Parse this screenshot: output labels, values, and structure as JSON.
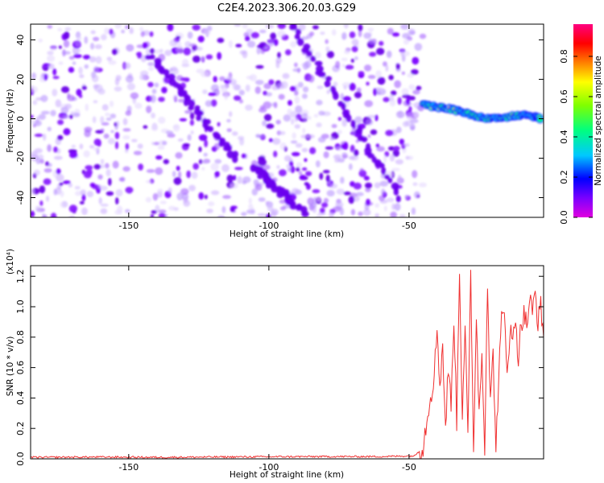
{
  "title": "C2E4.2023.306.20.03.G29",
  "chart_data": [
    {
      "type": "heatmap",
      "xlabel": "Height of straight line (km)",
      "ylabel": "Frequency (Hz)",
      "xlim": [
        -185,
        -2
      ],
      "ylim": [
        -50,
        48
      ],
      "xticks": [
        -150,
        -100,
        -50
      ],
      "yticks": [
        -40,
        -20,
        0,
        20,
        40
      ],
      "grid": false,
      "colorbar": {
        "label": "Normalized spectral amplitude",
        "range": [
          0,
          0.96
        ],
        "ticks": [
          0.0,
          0.2,
          0.4,
          0.6,
          0.8
        ],
        "colormap": [
          "#e000e0",
          "#7a00ff",
          "#0000ff",
          "#00c8ff",
          "#00ff80",
          "#80ff00",
          "#ffff00",
          "#ff8000",
          "#ff0000",
          "#ff0080"
        ]
      },
      "features": [
        {
          "kind": "noise-background",
          "x_range": [
            -185,
            -45
          ],
          "y_range": [
            -50,
            48
          ],
          "color": "#7a00ff"
        },
        {
          "kind": "diagonal-streak",
          "from": [
            -92,
            48
          ],
          "to": [
            -53,
            -40
          ]
        },
        {
          "kind": "diagonal-streak",
          "from": [
            -142,
            32
          ],
          "to": [
            -112,
            -20
          ]
        },
        {
          "kind": "diagonal-streak",
          "from": [
            -105,
            -25
          ],
          "to": [
            -90,
            -45
          ]
        },
        {
          "kind": "signal-track",
          "x": [
            -45,
            -40,
            -35,
            -30,
            -25,
            -20,
            -15,
            -10,
            -5,
            -3
          ],
          "y": [
            7,
            6,
            5,
            3,
            1,
            0,
            1,
            2,
            1,
            0
          ]
        }
      ]
    },
    {
      "type": "line",
      "xlabel": "Height of straight line (km)",
      "ylabel": "SNR (10 * v/v)",
      "scale_note": "(x10⁴)",
      "xlim": [
        -185,
        -2
      ],
      "ylim": [
        0,
        1.27
      ],
      "xticks": [
        -150,
        -100,
        -50
      ],
      "yticks": [
        0.0,
        0.2,
        0.4,
        0.6,
        0.8,
        1.0,
        1.2
      ],
      "grid": false,
      "color": "#f03030",
      "series": [
        {
          "x": [
            -185,
            -160,
            -140,
            -120,
            -100,
            -80,
            -60,
            -48,
            -45,
            -43,
            -41,
            -40,
            -39,
            -38,
            -37,
            -36,
            -35,
            -34,
            -33,
            -32,
            -31,
            -30,
            -29,
            -28,
            -27,
            -26,
            -25,
            -24,
            -23,
            -22,
            -21,
            -20,
            -19,
            -18,
            -17,
            -16,
            -15,
            -14,
            -13,
            -12,
            -11,
            -10,
            -9,
            -8,
            -7,
            -6,
            -5,
            -4,
            -3,
            -2
          ],
          "y": [
            0.01,
            0.012,
            0.01,
            0.012,
            0.014,
            0.015,
            0.015,
            0.02,
            0.08,
            0.35,
            0.55,
            0.86,
            0.5,
            0.74,
            0.2,
            0.6,
            0.35,
            0.95,
            0.25,
            1.26,
            0.3,
            0.9,
            0.1,
            1.2,
            0.05,
            0.95,
            0.3,
            0.7,
            0.1,
            1.19,
            0.35,
            0.7,
            0.06,
            0.55,
            0.9,
            0.95,
            0.6,
            0.85,
            0.75,
            0.95,
            0.65,
            0.9,
            0.95,
            0.88,
            1.05,
            0.95,
            1.1,
            0.9,
            1.0,
            0.8
          ]
        }
      ]
    }
  ]
}
